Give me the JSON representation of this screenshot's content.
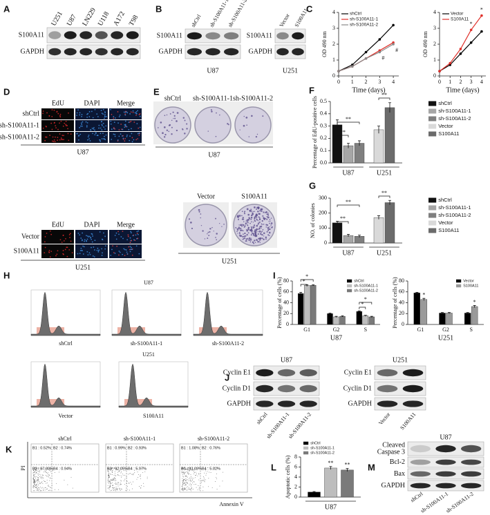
{
  "A": {
    "letter": "A",
    "lanes": [
      "U251",
      "U87",
      "LN229",
      "U118",
      "A172",
      "T98"
    ],
    "rows": [
      "S100A11",
      "GAPDH"
    ]
  },
  "B": {
    "letter": "B",
    "blots": [
      {
        "lanes": [
          "shCtrl",
          "sh-S100A11-1",
          "sh-S100A11-2"
        ],
        "rows": [
          "S100A11",
          "GAPDH"
        ],
        "cell": "U87"
      },
      {
        "lanes": [
          "Vector",
          "S100A11"
        ],
        "rows": [
          "S100A11",
          "GAPDH"
        ],
        "cell": "U251"
      }
    ]
  },
  "C": {
    "letter": "C",
    "charts": [
      {
        "type": "line",
        "ylabel": "OD 490 nm",
        "xlabel": "Time (days)",
        "x": [
          0,
          1,
          2,
          3,
          4
        ],
        "xlim": [
          0,
          4.4
        ],
        "xticks": [
          0,
          1,
          2,
          3,
          4
        ],
        "ylim": [
          0,
          4
        ],
        "yticks": [
          0,
          1,
          2,
          3,
          4
        ],
        "series": [
          {
            "name": "shCtrl",
            "color": "#000000",
            "values": [
              0.3,
              0.7,
              1.5,
              2.3,
              3.2
            ]
          },
          {
            "name": "sh-S100A11-1",
            "color": "#e0302a",
            "values": [
              0.3,
              0.6,
              1.1,
              1.6,
              2.1
            ]
          },
          {
            "name": "sh-S100A11-2",
            "color": "#888888",
            "values": [
              0.3,
              0.6,
              1.1,
              1.5,
              2.0
            ]
          }
        ],
        "annotations": [
          "#",
          "#"
        ]
      },
      {
        "type": "line",
        "ylabel": "OD 490 nm",
        "xlabel": "Time (days)",
        "x": [
          0,
          1,
          2,
          3,
          4
        ],
        "xlim": [
          0,
          4.4
        ],
        "xticks": [
          0,
          1,
          2,
          3,
          4
        ],
        "ylim": [
          0,
          4
        ],
        "yticks": [
          0,
          1,
          2,
          3,
          4
        ],
        "series": [
          {
            "name": "Vector",
            "color": "#000000",
            "values": [
              0.3,
              0.7,
              1.4,
              2.1,
              2.8
            ]
          },
          {
            "name": "S100A11",
            "color": "#e0302a",
            "values": [
              0.3,
              0.8,
              1.7,
              2.9,
              3.8
            ]
          }
        ],
        "annotations": [
          "*",
          "*"
        ]
      }
    ]
  },
  "D": {
    "letter": "D",
    "groups": [
      {
        "columns": [
          "EdU",
          "DAPI",
          "Merge"
        ],
        "rows": [
          "shCtrl",
          "sh-S100A11-1",
          "sh-S100A11-2"
        ],
        "cell": "U87"
      },
      {
        "columns": [
          "EdU",
          "DAPI",
          "Merge"
        ],
        "rows": [
          "Vector",
          "S100A11"
        ],
        "cell": "U251"
      }
    ]
  },
  "E": {
    "letter": "E",
    "groups": [
      {
        "dishes": [
          "shCtrl",
          "sh-S100A11-1",
          "sh-S100A11-2"
        ],
        "cell": "U87"
      },
      {
        "dishes": [
          "Vector",
          "S100A11"
        ],
        "cell": "U251"
      }
    ]
  },
  "F": {
    "letter": "F",
    "chart": {
      "type": "bar",
      "ylabel": "Percentage of EdU-positive cells",
      "categories": [
        "U87",
        "U251"
      ],
      "ylim": [
        0,
        0.5
      ],
      "yticks": [
        {
          "value": 0,
          "label": "0.0"
        },
        0.1,
        0.2,
        0.3,
        0.4,
        0.5
      ],
      "legend": "right",
      "series": [
        {
          "name": "shCtrl",
          "color": "#111111",
          "values": [
            0.31,
            null
          ],
          "errors": [
            0.04,
            null
          ]
        },
        {
          "name": "sh-S100A11-1",
          "color": "#a6a6a6",
          "values": [
            0.14,
            null
          ],
          "errors": [
            0.02,
            null
          ]
        },
        {
          "name": "sh-S100A11-2",
          "color": "#7f7f7f",
          "values": [
            0.16,
            null
          ],
          "errors": [
            0.02,
            null
          ]
        },
        {
          "name": "Vector",
          "color": "#d9d9d9",
          "values": [
            null,
            0.27
          ],
          "errors": [
            null,
            0.03
          ]
        },
        {
          "name": "S100A11",
          "color": "#6b6b6b",
          "values": [
            null,
            0.45
          ],
          "errors": [
            null,
            0.04
          ]
        }
      ],
      "annotations": [
        "**",
        "**",
        "**"
      ]
    }
  },
  "G": {
    "letter": "G",
    "chart": {
      "type": "bar",
      "ylabel": "NO. of colonies",
      "categories": [
        "U87",
        "U251"
      ],
      "ylim": [
        0,
        300
      ],
      "yticks": [
        0,
        100,
        200,
        300
      ],
      "legend": "right",
      "series": [
        {
          "name": "shCtrl",
          "color": "#111111",
          "values": [
            135,
            null
          ],
          "errors": [
            10,
            null
          ]
        },
        {
          "name": "sh-S100A11-1",
          "color": "#a6a6a6",
          "values": [
            50,
            null
          ],
          "errors": [
            8,
            null
          ]
        },
        {
          "name": "sh-S100A11-2",
          "color": "#7f7f7f",
          "values": [
            45,
            null
          ],
          "errors": [
            8,
            null
          ]
        },
        {
          "name": "Vector",
          "color": "#d9d9d9",
          "values": [
            null,
            170
          ],
          "errors": [
            null,
            12
          ]
        },
        {
          "name": "S100A11",
          "color": "#6b6b6b",
          "values": [
            null,
            270
          ],
          "errors": [
            null,
            15
          ]
        }
      ],
      "annotations": [
        "**",
        "**",
        "**"
      ]
    }
  },
  "H": {
    "letter": "H",
    "groups": [
      {
        "cell": "U87",
        "samples": [
          "shCtrl",
          "sh-S100A11-1",
          "sh-S100A11-2"
        ]
      },
      {
        "cell": "U251",
        "samples": [
          "Vector",
          "S100A11"
        ]
      }
    ]
  },
  "I": {
    "letter": "I",
    "charts": [
      {
        "type": "bar",
        "ylabel": "Percentage of cells (%)",
        "xlabel": "U87",
        "categories": [
          "G1",
          "G2",
          "S"
        ],
        "ylim": [
          0,
          80
        ],
        "yticks": [
          0,
          20,
          40,
          60,
          80
        ],
        "legend": "upper right",
        "series": [
          {
            "name": "shCtrl",
            "color": "#000000",
            "values": [
              57,
              20,
              24
            ],
            "errors": [
              2,
              1,
              1
            ]
          },
          {
            "name": "sh-S100A11-1",
            "color": "#bdbdbd",
            "values": [
              72,
              14,
              16
            ],
            "errors": [
              1,
              1,
              1
            ]
          },
          {
            "name": "sh-S100A11-2",
            "color": "#7a7a7a",
            "values": [
              72,
              15,
              14
            ],
            "errors": [
              1,
              1,
              1
            ]
          }
        ],
        "annotations": [
          "*",
          "*",
          "*",
          "*"
        ]
      },
      {
        "type": "bar",
        "ylabel": "Percentage of cells (%)",
        "xlabel": "U251",
        "categories": [
          "G1",
          "G2",
          "S"
        ],
        "ylim": [
          0,
          80
        ],
        "yticks": [
          0,
          20,
          40,
          60,
          80
        ],
        "legend": "upper right",
        "series": [
          {
            "name": "Vector",
            "color": "#000000",
            "values": [
              58,
              21,
              21
            ],
            "errors": [
              1,
              1,
              1
            ]
          },
          {
            "name": "S100A11",
            "color": "#9a9a9a",
            "values": [
              46,
              21,
              33
            ],
            "errors": [
              2,
              1,
              2
            ]
          }
        ],
        "annotations": [
          "*",
          "*"
        ]
      }
    ]
  },
  "J": {
    "letter": "J",
    "blots": [
      {
        "cell": "U87",
        "rows": [
          "Cyclin E1",
          "Cyclin D1",
          "GAPDH"
        ],
        "lanes": [
          "shCtrl",
          "sh-S100A11-1",
          "sh-S100A11-2"
        ]
      },
      {
        "cell": "U251",
        "rows": [
          "Cyclin E1",
          "Cyclin D1",
          "GAPDH"
        ],
        "lanes": [
          "Vector",
          "S100A11"
        ]
      }
    ]
  },
  "K": {
    "letter": "K",
    "ylabel": "PI",
    "xlabel": "Annexin V",
    "plots": [
      {
        "title": "shCtrl",
        "quadrants": [
          "B1 : 0.52%",
          "B2 : 0.74%",
          "B3 : 97.80%",
          "B4 : 0.94%"
        ]
      },
      {
        "title": "sh-S100A11-1",
        "quadrants": [
          "B1 : 0.99%",
          "B2 : 0.93%",
          "B3 : 92.05%",
          "B4 : 5.97%"
        ]
      },
      {
        "title": "sh-S100A11-2",
        "quadrants": [
          "B1 : 1.08%",
          "B2 : 0.76%",
          "B3 : 93.09%",
          "B4 : 5.02%"
        ]
      }
    ]
  },
  "L": {
    "letter": "L",
    "chart": {
      "type": "bar",
      "ylabel": "Apoptotic cells (%)",
      "categories": [
        "U87"
      ],
      "ylim": [
        0,
        8
      ],
      "yticks": [
        0,
        2,
        4,
        6,
        8
      ],
      "legend": "upper left",
      "series": [
        {
          "name": "shCtrl",
          "color": "#000000",
          "values": [
            1.0
          ],
          "errors": [
            0.1
          ]
        },
        {
          "name": "sh-S100A11-1",
          "color": "#bdbdbd",
          "values": [
            5.8
          ],
          "errors": [
            0.3
          ]
        },
        {
          "name": "sh-S100A11-2",
          "color": "#7a7a7a",
          "values": [
            5.4
          ],
          "errors": [
            0.3
          ]
        }
      ],
      "annotations": [
        "**",
        "**"
      ]
    }
  },
  "M": {
    "letter": "M",
    "cell": "U87",
    "rows": [
      [
        "Cleaved",
        "Caspase 3"
      ],
      "Bcl-2",
      "Bax",
      "GAPDH"
    ],
    "lanes": [
      "shCtrl",
      "sh-S100A11-1",
      "sh-S100A11-2"
    ]
  }
}
